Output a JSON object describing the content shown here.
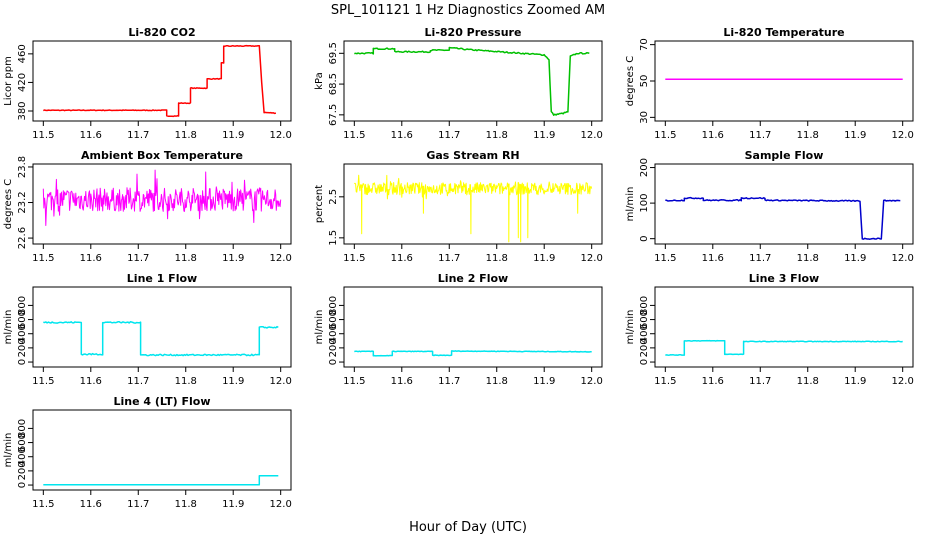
{
  "figure": {
    "title": "SPL_101121  1 Hz Diagnostics Zoomed AM",
    "xlabel": "Hour of Day (UTC)"
  },
  "chart_data": [
    {
      "type": "line",
      "title": "Li-820 CO2",
      "ylabel": "Licor ppm",
      "xlim": [
        11.5,
        12.0
      ],
      "ylim": [
        366,
        478
      ],
      "yticks": [
        380,
        420,
        460
      ],
      "xticks": [
        11.5,
        11.6,
        11.7,
        11.8,
        11.9,
        12.0
      ],
      "color": "#ff0000",
      "series": [
        {
          "noise": 0.5,
          "segments": [
            [
              11.5,
              381
            ],
            [
              11.76,
              381
            ],
            [
              11.76,
              373
            ],
            [
              11.785,
              373
            ],
            [
              11.785,
              391
            ],
            [
              11.81,
              391
            ],
            [
              11.81,
              412
            ],
            [
              11.845,
              412
            ],
            [
              11.845,
              425
            ],
            [
              11.875,
              425
            ],
            [
              11.875,
              447
            ],
            [
              11.88,
              447
            ],
            [
              11.88,
              471
            ],
            [
              11.955,
              471
            ],
            [
              11.96,
              420
            ],
            [
              11.965,
              378
            ],
            [
              11.99,
              377
            ]
          ]
        }
      ]
    },
    {
      "type": "line",
      "title": "Li-820 Pressure",
      "ylabel": "kPa",
      "xlim": [
        11.5,
        12.0
      ],
      "ylim": [
        67.3,
        69.9
      ],
      "yticks": [
        67.5,
        68.5,
        69.5
      ],
      "xticks": [
        11.5,
        11.6,
        11.7,
        11.8,
        11.9,
        12.0
      ],
      "color": "#00c000",
      "series": [
        {
          "noise": 0.02,
          "segments": [
            [
              11.5,
              69.5
            ],
            [
              11.54,
              69.5
            ],
            [
              11.54,
              69.65
            ],
            [
              11.585,
              69.65
            ],
            [
              11.585,
              69.55
            ],
            [
              11.66,
              69.55
            ],
            [
              11.66,
              69.6
            ],
            [
              11.7,
              69.6
            ],
            [
              11.7,
              69.68
            ],
            [
              11.74,
              69.62
            ],
            [
              11.9,
              69.45
            ],
            [
              11.91,
              69.3
            ],
            [
              11.915,
              67.6
            ],
            [
              11.92,
              67.5
            ],
            [
              11.94,
              67.55
            ],
            [
              11.95,
              67.6
            ],
            [
              11.955,
              69.4
            ],
            [
              11.97,
              69.5
            ],
            [
              11.995,
              69.5
            ]
          ]
        }
      ]
    },
    {
      "type": "line",
      "title": "Li-820 Temperature",
      "ylabel": "degrees C",
      "xlim": [
        11.5,
        12.0
      ],
      "ylim": [
        28,
        72
      ],
      "yticks": [
        30,
        50,
        70
      ],
      "xticks": [
        11.5,
        11.6,
        11.7,
        11.8,
        11.9,
        12.0
      ],
      "color": "#ff00ff",
      "series": [
        {
          "noise": 0,
          "segments": [
            [
              11.5,
              51
            ],
            [
              12.0,
              51
            ]
          ]
        }
      ]
    },
    {
      "type": "line",
      "title": "Ambient Box Temperature",
      "ylabel": "degrees C",
      "xlim": [
        11.5,
        12.0
      ],
      "ylim": [
        22.5,
        23.85
      ],
      "yticks": [
        22.6,
        23.2,
        23.8
      ],
      "xticks": [
        11.5,
        11.6,
        11.7,
        11.8,
        11.9,
        12.0
      ],
      "color": "#ff00ff",
      "series": [
        {
          "noise": 0.2,
          "spiky": true,
          "segments": [
            [
              11.5,
              23.25
            ],
            [
              12.0,
              23.25
            ]
          ]
        }
      ]
    },
    {
      "type": "line",
      "title": "Gas Stream RH",
      "ylabel": "percent",
      "xlim": [
        11.5,
        12.0
      ],
      "ylim": [
        1.35,
        3.3
      ],
      "yticks": [
        1.5,
        2.5
      ],
      "xticks": [
        11.5,
        11.6,
        11.7,
        11.8,
        11.9,
        12.0
      ],
      "color": "#ffff00",
      "series": [
        {
          "noise": 0.15,
          "spiky": true,
          "dips": [
            [
              11.515,
              1.6
            ],
            [
              11.645,
              2.1
            ],
            [
              11.745,
              1.6
            ],
            [
              11.825,
              1.4
            ],
            [
              11.845,
              1.5
            ],
            [
              11.85,
              1.4
            ],
            [
              11.865,
              1.5
            ],
            [
              11.97,
              2.1
            ]
          ],
          "segments": [
            [
              11.5,
              2.7
            ],
            [
              12.0,
              2.7
            ]
          ]
        }
      ]
    },
    {
      "type": "line",
      "title": "Sample Flow",
      "ylabel": "ml/min",
      "xlim": [
        11.5,
        12.0
      ],
      "ylim": [
        -15,
        210
      ],
      "yticks": [
        0,
        100,
        200
      ],
      "xticks": [
        11.5,
        11.6,
        11.7,
        11.8,
        11.9,
        12.0
      ],
      "color": "#0000cc",
      "series": [
        {
          "noise": 1.5,
          "segments": [
            [
              11.5,
              107
            ],
            [
              11.54,
              108
            ],
            [
              11.54,
              114
            ],
            [
              11.58,
              114
            ],
            [
              11.58,
              108
            ],
            [
              11.66,
              108
            ],
            [
              11.66,
              114
            ],
            [
              11.71,
              114
            ],
            [
              11.71,
              108
            ],
            [
              11.91,
              106
            ],
            [
              11.915,
              0
            ],
            [
              11.955,
              0
            ],
            [
              11.96,
              107
            ],
            [
              11.995,
              107
            ]
          ]
        }
      ]
    },
    {
      "type": "line",
      "title": "Line 1 Flow",
      "ylabel": "ml/min",
      "xlim": [
        11.5,
        12.0
      ],
      "ylim": [
        -70,
        1060
      ],
      "yticks": [
        0,
        200,
        400,
        600,
        800
      ],
      "xticks": [
        11.5,
        11.6,
        11.7,
        11.8,
        11.9,
        12.0
      ],
      "color": "#00e5ee",
      "series": [
        {
          "noise": 10,
          "segments": [
            [
              11.5,
              560
            ],
            [
              11.58,
              560
            ],
            [
              11.58,
              110
            ],
            [
              11.625,
              110
            ],
            [
              11.625,
              560
            ],
            [
              11.705,
              560
            ],
            [
              11.705,
              100
            ],
            [
              11.955,
              100
            ],
            [
              11.955,
              490
            ],
            [
              11.995,
              490
            ]
          ]
        }
      ]
    },
    {
      "type": "line",
      "title": "Line 2 Flow",
      "ylabel": "ml/min",
      "xlim": [
        11.5,
        12.0
      ],
      "ylim": [
        -70,
        1060
      ],
      "yticks": [
        0,
        200,
        400,
        600,
        800
      ],
      "xticks": [
        11.5,
        11.6,
        11.7,
        11.8,
        11.9,
        12.0
      ],
      "color": "#00e5ee",
      "series": [
        {
          "noise": 4,
          "segments": [
            [
              11.5,
              150
            ],
            [
              11.54,
              150
            ],
            [
              11.54,
              90
            ],
            [
              11.58,
              90
            ],
            [
              11.58,
              150
            ],
            [
              11.665,
              150
            ],
            [
              11.665,
              95
            ],
            [
              11.705,
              95
            ],
            [
              11.705,
              155
            ],
            [
              12.0,
              145
            ]
          ]
        }
      ]
    },
    {
      "type": "line",
      "title": "Line 3 Flow",
      "ylabel": "ml/min",
      "xlim": [
        11.5,
        12.0
      ],
      "ylim": [
        -70,
        1060
      ],
      "yticks": [
        0,
        200,
        400,
        600,
        800
      ],
      "xticks": [
        11.5,
        11.6,
        11.7,
        11.8,
        11.9,
        12.0
      ],
      "color": "#00e5ee",
      "series": [
        {
          "noise": 4,
          "segments": [
            [
              11.5,
              100
            ],
            [
              11.54,
              100
            ],
            [
              11.54,
              300
            ],
            [
              11.625,
              300
            ],
            [
              11.625,
              110
            ],
            [
              11.665,
              110
            ],
            [
              11.665,
              290
            ],
            [
              12.0,
              290
            ]
          ]
        }
      ]
    },
    {
      "type": "line",
      "title": "Line 4 (LT) Flow",
      "ylabel": "ml/min",
      "xlim": [
        11.5,
        12.0
      ],
      "ylim": [
        -70,
        1060
      ],
      "yticks": [
        0,
        200,
        400,
        600,
        800
      ],
      "xticks": [
        11.5,
        11.6,
        11.7,
        11.8,
        11.9,
        12.0
      ],
      "color": "#00e5ee",
      "series": [
        {
          "noise": 0,
          "segments": [
            [
              11.5,
              5
            ],
            [
              11.955,
              5
            ],
            [
              11.955,
              130
            ],
            [
              11.995,
              130
            ]
          ]
        }
      ]
    }
  ]
}
